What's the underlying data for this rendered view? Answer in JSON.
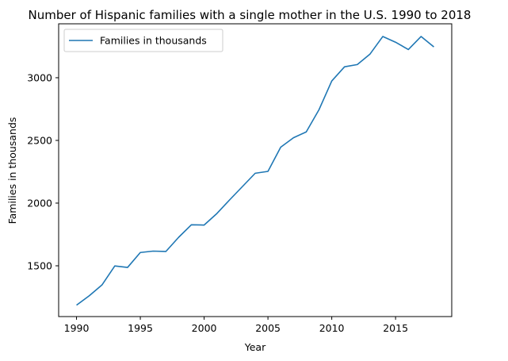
{
  "chart_data": {
    "type": "line",
    "title": "Number of Hispanic families with a single mother in the U.S. 1990 to 2018",
    "xlabel": "Year",
    "ylabel": "Families in thousands",
    "xlim": [
      1988.6,
      2019.4
    ],
    "ylim": [
      1095,
      3430
    ],
    "xticks": [
      1990,
      1995,
      2000,
      2005,
      2010,
      2015
    ],
    "yticks": [
      1500,
      2000,
      2500,
      3000
    ],
    "grid": false,
    "legend_position": "upper-left",
    "series": [
      {
        "name": "Families in thousands",
        "color": "#1f77b4",
        "x": [
          1990,
          1991,
          1992,
          1993,
          1994,
          1995,
          1996,
          1997,
          1998,
          1999,
          2000,
          2001,
          2002,
          2003,
          2004,
          2005,
          2006,
          2007,
          2008,
          2009,
          2010,
          2011,
          2012,
          2013,
          2014,
          2015,
          2016,
          2017,
          2018
        ],
        "y": [
          1186,
          1261,
          1348,
          1499,
          1487,
          1606,
          1617,
          1614,
          1727,
          1827,
          1825,
          1917,
          2026,
          2132,
          2238,
          2253,
          2446,
          2521,
          2568,
          2745,
          2974,
          3087,
          3105,
          3189,
          3329,
          3283,
          3225,
          3329,
          3246
        ]
      }
    ]
  }
}
